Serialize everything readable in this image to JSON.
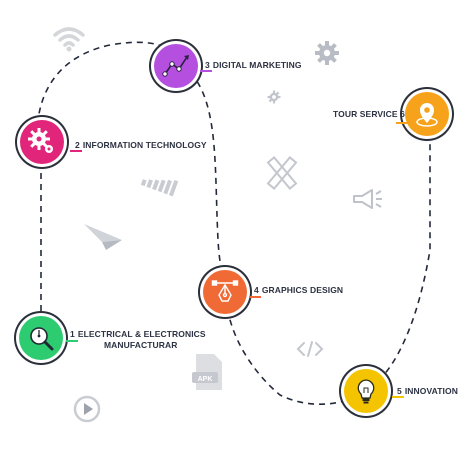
{
  "steps": [
    {
      "number": "1",
      "label": "ELECTRICAL & ELECTRONICS",
      "label_line2": "MANUFACTURAR",
      "color": "#2ecc71",
      "icon": "magnifier-gauge-icon"
    },
    {
      "number": "2",
      "label": "INFORMATION TECHNOLOGY",
      "color": "#e0257a",
      "icon": "gears-icon"
    },
    {
      "number": "3",
      "label": "DIGITAL MARKETING",
      "color": "#b44fe0",
      "icon": "line-chart-icon"
    },
    {
      "number": "4",
      "label": "GRAPHICS DESIGN",
      "color": "#f06a35",
      "icon": "pen-tool-icon"
    },
    {
      "number": "5",
      "label": "INNOVATION",
      "color": "#f5c400",
      "icon": "lightbulb-icon"
    },
    {
      "number": "6",
      "label": "TOUR SERVICE",
      "color": "#f7a21b",
      "icon": "map-pin-icon"
    }
  ],
  "path_color": "#23293a",
  "decorations": [
    "wifi-icon",
    "gear-icon",
    "gear-small-icon",
    "signal-bars-icon",
    "paper-plane-icon",
    "pencil-ruler-icon",
    "megaphone-icon",
    "code-icon",
    "apk-file-icon",
    "play-button-icon"
  ]
}
